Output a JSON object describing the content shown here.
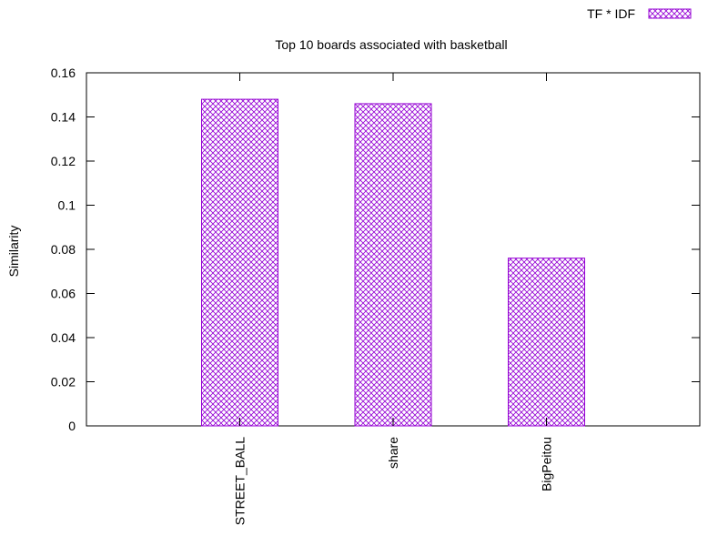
{
  "chart_data": {
    "type": "bar",
    "title": "Top 10 boards associated with basketball",
    "xlabel": "",
    "ylabel": "Similarity",
    "categories": [
      "STREET_BALL",
      "share",
      "BigPeitou"
    ],
    "series": [
      {
        "name": "TF * IDF",
        "values": [
          0.148,
          0.146,
          0.076
        ]
      }
    ],
    "ylim": [
      0,
      0.16
    ],
    "yticks": [
      "0",
      "0.02",
      "0.04",
      "0.06",
      "0.08",
      "0.1",
      "0.12",
      "0.14",
      "0.16"
    ],
    "grid": false,
    "legend_position": "top-right",
    "bar_color": "#9400d3",
    "bar_pattern": "crosshatch"
  }
}
